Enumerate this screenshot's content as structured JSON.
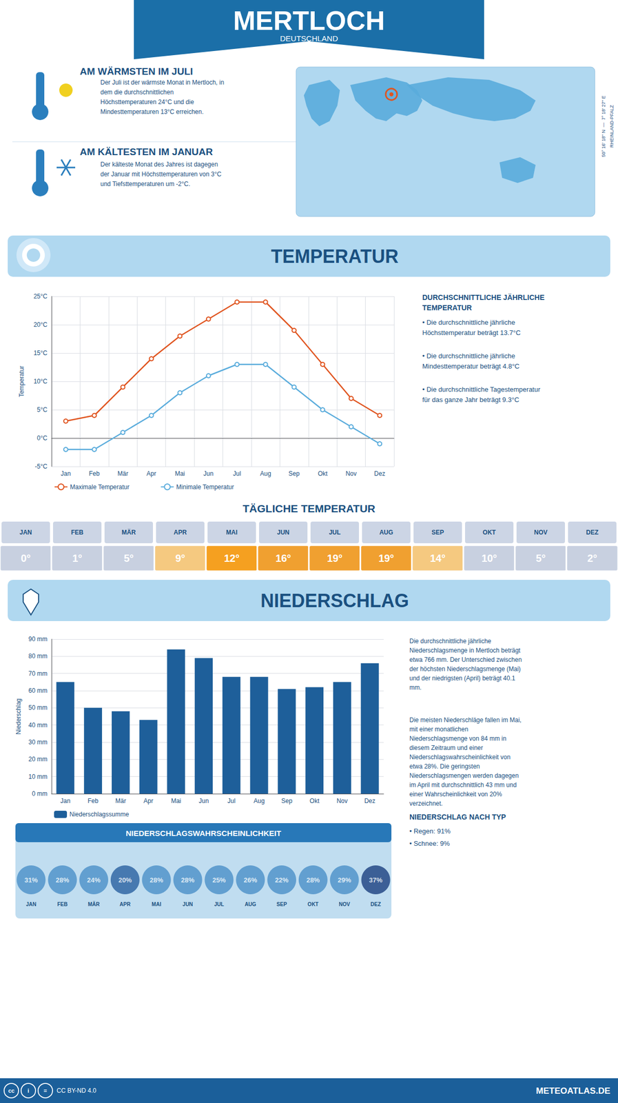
{
  "chart_data": [
    {
      "type": "line",
      "title": "TEMPERATUR",
      "ylabel": "Temperatur",
      "categories": [
        "Jan",
        "Feb",
        "Mär",
        "Apr",
        "Mai",
        "Jun",
        "Jul",
        "Aug",
        "Sep",
        "Okt",
        "Nov",
        "Dez"
      ],
      "series": [
        {
          "name": "Maximale Temperatur",
          "color": "#e05520",
          "marker": "circle",
          "values": [
            3,
            4,
            9,
            14,
            18,
            21,
            24,
            24,
            19,
            13,
            7,
            4
          ]
        },
        {
          "name": "Minimale Temperatur",
          "color": "#5aacdc",
          "marker": "circle",
          "values": [
            -2,
            -2,
            1,
            4,
            8,
            11,
            13,
            13,
            9,
            5,
            2,
            -1
          ]
        }
      ],
      "ylim": [
        -5,
        25
      ],
      "yticks": [
        {
          "value": -5,
          "label": "-5°C"
        },
        {
          "value": 0,
          "label": "0°C"
        },
        {
          "value": 5,
          "label": "5°C"
        },
        {
          "value": 10,
          "label": "10°C"
        },
        {
          "value": 15,
          "label": "15°C"
        },
        {
          "value": 20,
          "label": "20°C"
        },
        {
          "value": 25,
          "label": "25°C"
        }
      ],
      "grid": true,
      "legend": "bottom",
      "annotations": [
        "MERTLOCH",
        "DEUTSCHLAND",
        "AM WÄRMSTEN IM JULI",
        "Der Juli ist der wärmste Monat in Mertloch, in\ndem die durchschnittlichen\nHöchsttemperaturen 24°C und die\nMindesttemperaturen 13°C erreichen.",
        "AM KÄLTESTEN IM JANUAR",
        "Der kälteste Monat des Jahres ist dagegen\nder Januar mit Höchsttemperaturen von 3°C\nund Tiefsttemperaturen um -2°C.",
        "50° 16' 18'' N  —  7° 18' 27'' E\nRHEINLAND-PFALZ",
        "DURCHSCHNITTLICHE JÄHRLICHE\nTEMPERATUR",
        "• Die durchschnittliche jährliche\nHöchsttemperatur beträgt 13.7°C",
        "• Die durchschnittliche jährliche\nMindesttemperatur beträgt 4.8°C",
        "• Die durchschnittliche Tagestemperatur\nfür das ganze Jahr beträgt 9.3°C"
      ]
    },
    {
      "type": "table",
      "title": "TÄGLICHE TEMPERATUR",
      "categories": [
        "JAN",
        "FEB",
        "MÄR",
        "APR",
        "MAI",
        "JUN",
        "JUL",
        "AUG",
        "SEP",
        "OKT",
        "NOV",
        "DEZ"
      ],
      "values": [
        0,
        1,
        5,
        9,
        12,
        16,
        19,
        19,
        14,
        10,
        5,
        2
      ],
      "value_labels": [
        "0°",
        "1°",
        "5°",
        "9°",
        "12°",
        "16°",
        "19°",
        "19°",
        "14°",
        "10°",
        "5°",
        "2°"
      ],
      "colors": [
        "#c8d0e0",
        "#c8d0e0",
        "#c8d0e0",
        "#f5c980",
        "#f5a020",
        "#f0a030",
        "#f0a030",
        "#f0a030",
        "#f5c980",
        "#c8d0e0",
        "#c8d0e0",
        "#c8d0e0"
      ],
      "data_labels": true
    },
    {
      "type": "bar",
      "title": "NIEDERSCHLAG",
      "ylabel": "Niederschlag",
      "categories": [
        "Jan",
        "Feb",
        "Mär",
        "Apr",
        "Mai",
        "Jun",
        "Jul",
        "Aug",
        "Sep",
        "Okt",
        "Nov",
        "Dez"
      ],
      "series": [
        {
          "name": "Niederschlagssumme",
          "color": "#1e5f9a",
          "values": [
            65,
            50,
            48,
            43,
            84,
            79,
            68,
            68,
            61,
            62,
            65,
            76
          ]
        }
      ],
      "ylim": [
        0,
        90
      ],
      "yticks": [
        {
          "value": 0,
          "label": "0 mm"
        },
        {
          "value": 10,
          "label": "10 mm"
        },
        {
          "value": 20,
          "label": "20 mm"
        },
        {
          "value": 30,
          "label": "30 mm"
        },
        {
          "value": 40,
          "label": "40 mm"
        },
        {
          "value": 50,
          "label": "50 mm"
        },
        {
          "value": 60,
          "label": "60 mm"
        },
        {
          "value": 70,
          "label": "70 mm"
        },
        {
          "value": 80,
          "label": "80 mm"
        },
        {
          "value": 90,
          "label": "90 mm"
        }
      ],
      "grid": true,
      "legend": "bottom",
      "annotations": [
        "Die durchschnittliche jährliche\nNiederschlagsmenge in Mertloch beträgt\netwa 766 mm. Der Unterschied zwischen\nder höchsten Niederschlagsmenge (Mai)\nund der niedrigsten (April) beträgt 40.1\nmm.",
        "Die meisten Niederschläge fallen im Mai,\nmit einer monatlichen\nNiederschlagsmenge von 84 mm in\ndiesem Zeitraum und einer\nNiederschlagswahrscheinlichkeit von\netwa 28%. Die geringsten\nNiederschlagsmengen werden dagegen\nim April mit durchschnittlich 43 mm und\neiner Wahrscheinlichkeit von 20%\nverzeichnet.",
        "NIEDERSCHLAG NACH TYP",
        "• Regen: 91%",
        "• Schnee: 9%"
      ]
    },
    {
      "type": "scatter",
      "title": "NIEDERSCHLAGSWAHRSCHEINLICHKEIT",
      "categories": [
        "JAN",
        "FEB",
        "MÄR",
        "APR",
        "MAI",
        "JUN",
        "JUL",
        "AUG",
        "SEP",
        "OKT",
        "NOV",
        "DEZ"
      ],
      "values": [
        31,
        28,
        24,
        20,
        28,
        28,
        25,
        26,
        22,
        28,
        29,
        37
      ],
      "value_labels": [
        "31%",
        "28%",
        "24%",
        "20%",
        "28%",
        "28%",
        "25%",
        "26%",
        "22%",
        "28%",
        "29%",
        "37%"
      ],
      "colors": [
        "#4a90c8",
        "#4a90c8",
        "#4a90c8",
        "#2860a0",
        "#4a90c8",
        "#4a90c8",
        "#4a90c8",
        "#4a90c8",
        "#4a90c8",
        "#4a90c8",
        "#4a90c8",
        "#1a4080"
      ],
      "data_labels": true,
      "annotations": [
        "cc",
        "i",
        "=",
        "CC BY-ND 4.0",
        "METEOATLAS.DE"
      ]
    }
  ]
}
